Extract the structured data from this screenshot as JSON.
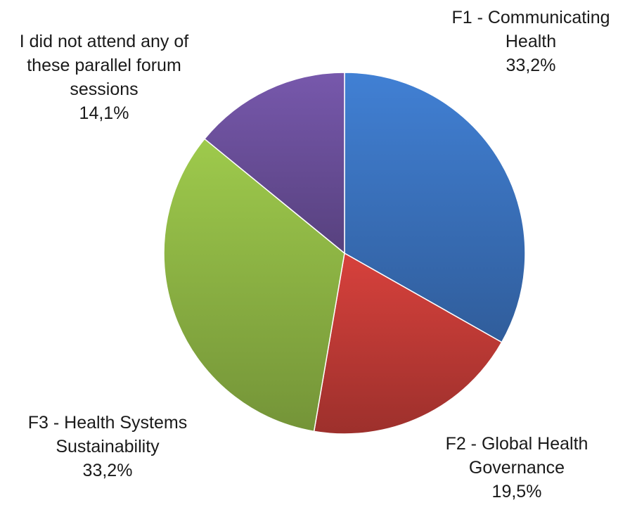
{
  "chart_data": {
    "type": "pie",
    "title": "",
    "slices": [
      {
        "label_lines": [
          "F1 - Communicating",
          "Health"
        ],
        "value": 33.2,
        "value_label": "33,2%",
        "color": "#3A72BD"
      },
      {
        "label_lines": [
          "F2 - Global Health",
          "Governance"
        ],
        "value": 19.5,
        "value_label": "19,5%",
        "color": "#C03A36"
      },
      {
        "label_lines": [
          "F3 - Health Systems",
          "Sustainability"
        ],
        "value": 33.2,
        "value_label": "33,2%",
        "color": "#8DB444"
      },
      {
        "label_lines": [
          "I did not attend any of",
          "these parallel forum",
          "sessions"
        ],
        "value": 14.1,
        "value_label": "14,1%",
        "color": "#6A4F9A"
      }
    ],
    "start_angle_deg": 0,
    "direction": "clockwise",
    "legend": "none"
  }
}
